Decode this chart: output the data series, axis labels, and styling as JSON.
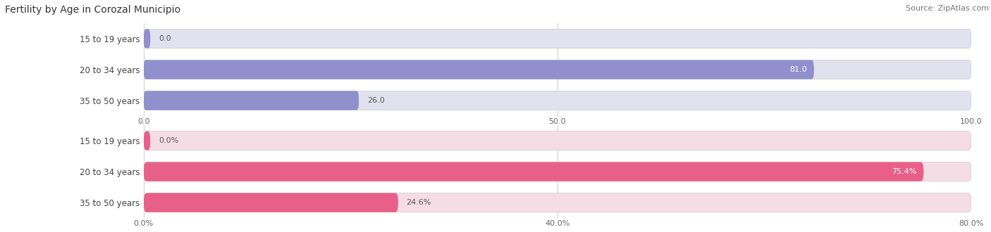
{
  "title": "Fertility by Age in Corozal Municipio",
  "source": "Source: ZipAtlas.com",
  "top_bars": {
    "categories": [
      "15 to 19 years",
      "20 to 34 years",
      "35 to 50 years"
    ],
    "values": [
      0.0,
      81.0,
      26.0
    ],
    "xlim": [
      0,
      100
    ],
    "xticks": [
      0.0,
      50.0,
      100.0
    ],
    "xtick_labels": [
      "0.0",
      "50.0",
      "100.0"
    ],
    "bar_color": "#9090cc",
    "bar_bg_color": "#e2e2ef",
    "label_inside_color": "#ffffff",
    "label_outside_color": "#555555",
    "value_threshold": 78
  },
  "bottom_bars": {
    "categories": [
      "15 to 19 years",
      "20 to 34 years",
      "35 to 50 years"
    ],
    "values": [
      0.0,
      75.4,
      24.6
    ],
    "xlim": [
      0,
      80
    ],
    "xticks": [
      0.0,
      40.0,
      80.0
    ],
    "xtick_labels": [
      "0.0%",
      "40.0%",
      "80.0%"
    ],
    "bar_color": "#e8608a",
    "bar_bg_color": "#f5dde6",
    "label_inside_color": "#ffffff",
    "label_outside_color": "#555555",
    "value_threshold": 70
  },
  "label_color": "#444444",
  "bg_color": "#ffffff",
  "bar_height": 0.62,
  "title_fontsize": 10,
  "label_fontsize": 8.5,
  "value_fontsize": 8.0,
  "tick_fontsize": 8,
  "source_fontsize": 8
}
